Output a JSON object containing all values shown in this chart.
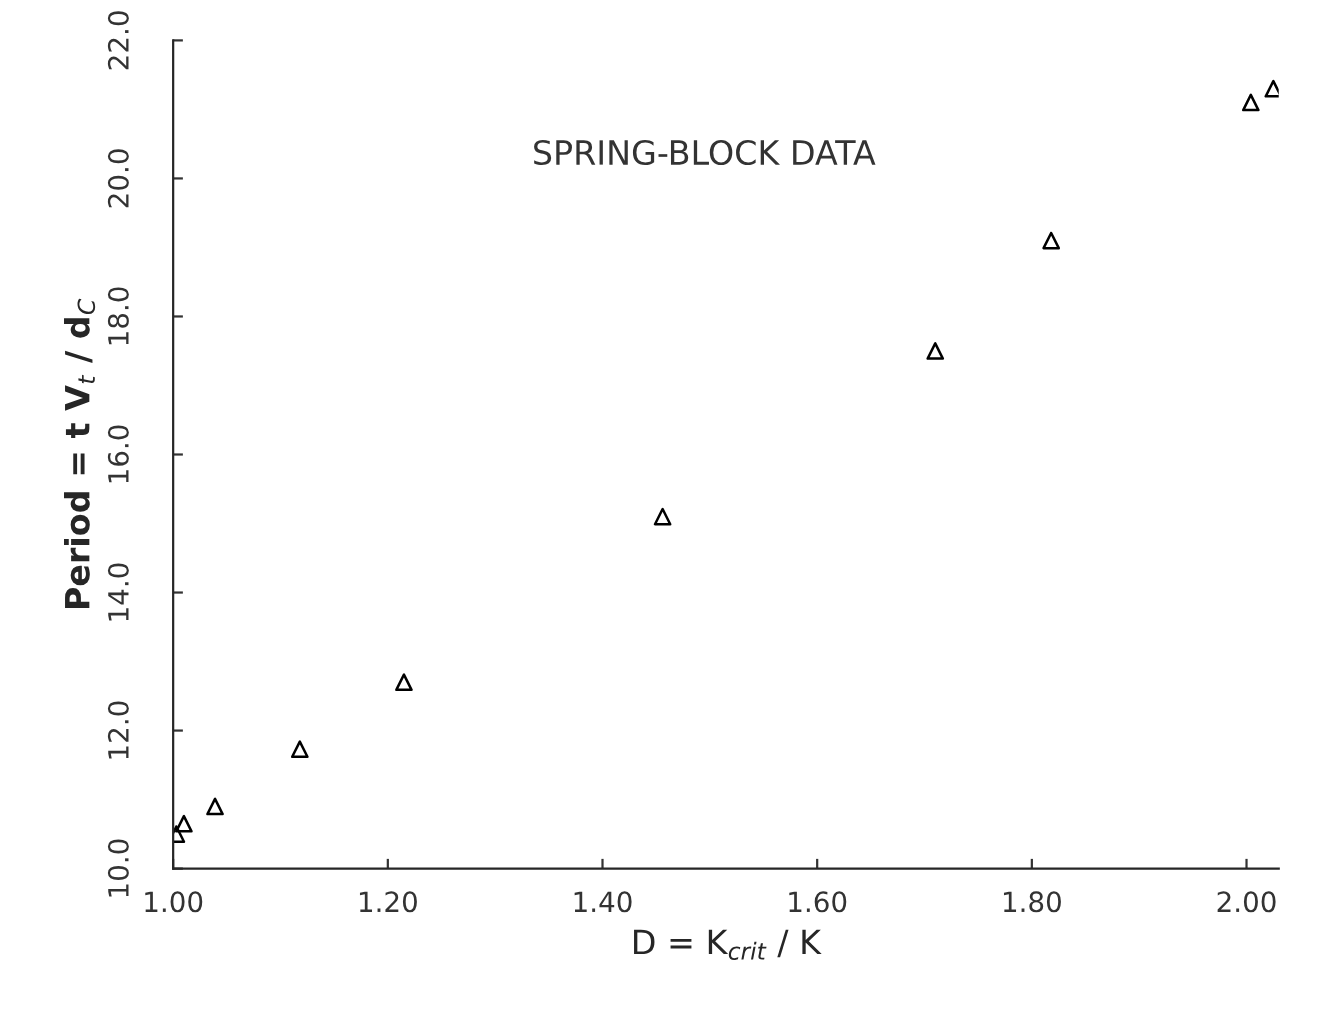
{
  "chart_data": {
    "type": "scatter",
    "xlabel": "D = K$_{crit}$ / K",
    "ylabel": "Period = t V$_{t}$ / d$_{C}$",
    "annotations": [
      "SPRING-BLOCK DATA"
    ],
    "x": [
      1.003,
      1.01,
      1.039,
      1.118,
      1.215,
      1.456,
      1.71,
      1.818,
      2.004,
      2.025
    ],
    "series": [
      {
        "color": "#000000",
        "values": [
          10.5,
          10.65,
          10.9,
          11.73,
          12.7,
          15.1,
          17.5,
          19.1,
          21.1,
          21.3
        ]
      }
    ],
    "xlim": [
      1.0,
      2.03
    ],
    "ylim": [
      10.0,
      22.0
    ],
    "xticks": [
      {
        "value": 1.0,
        "label": "1.00"
      },
      {
        "value": 1.2,
        "label": "1.20"
      },
      {
        "value": 1.4,
        "label": "1.40"
      },
      {
        "value": 1.6,
        "label": "1.60"
      },
      {
        "value": 1.8,
        "label": "1.80"
      },
      {
        "value": 2.0,
        "label": "2.00"
      }
    ],
    "yticks": [
      {
        "value": 10.0,
        "label": "10.0"
      },
      {
        "value": 12.0,
        "label": "12.0"
      },
      {
        "value": 14.0,
        "label": "14.0"
      },
      {
        "value": 16.0,
        "label": "16.0"
      },
      {
        "value": 18.0,
        "label": "18.0"
      },
      {
        "value": 20.0,
        "label": "20.0"
      },
      {
        "value": 22.0,
        "label": "22.0"
      }
    ],
    "grid": false,
    "legend": false,
    "marker": "triangle"
  }
}
